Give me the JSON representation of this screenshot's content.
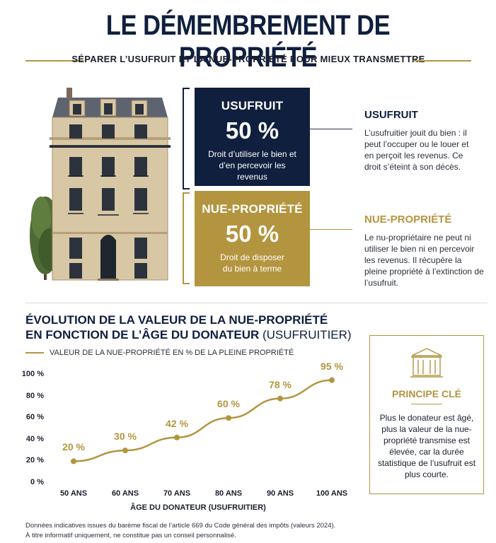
{
  "title": "LE DÉMEMBREMENT DE PROPRIÉTÉ",
  "subtitle": "SÉPARER L’USUFRUIT ET LA NUE-PROPRIÉTÉ POUR MIEUX TRANSMETTRE",
  "colors": {
    "navy": "#0f1f3d",
    "gold": "#b3953f"
  },
  "usufruit_box": {
    "heading": "USUFRUIT",
    "percent": "50 %",
    "description": "Droit d’utiliser le bien et d’en percevoir les revenus"
  },
  "nue_box": {
    "heading": "NUE-PROPRIÉTÉ",
    "percent": "50 %",
    "description": "Droit de disposer du bien à terme"
  },
  "usufruit_side": {
    "heading": "USUFRUIT",
    "text": "L’usufruitier jouit du bien : il peut l’occuper ou le louer et en perçoit les revenus. Ce droit s’éteint à son décès."
  },
  "nue_side": {
    "heading": "NUE-PROPRIÉTÉ",
    "text": "Le nu-propriétaire ne peut ni utiliser le bien ni en percevoir les revenus. Il récupère la pleine propriété à l’extinction de l’usufruit."
  },
  "chart_section": {
    "title_line1": "ÉVOLUTION DE LA VALEUR DE LA NUE-PROPRIÉTÉ",
    "title_line2_bold": "EN FONCTION DE L’ÂGE DU DONATEUR",
    "title_line2_light": "(USUFRUITIER)",
    "legend": "VALEUR DE LA NUE-PROPRIÉTÉ EN % DE LA PLEINE PROPRIÉTÉ"
  },
  "chart_data": {
    "type": "line",
    "categories": [
      "50 ANS",
      "60 ANS",
      "70 ANS",
      "80 ANS",
      "90 ANS",
      "100 ANS"
    ],
    "series": [
      {
        "name": "VALEUR DE LA NUE-PROPRIÉTÉ EN % DE LA PLEINE PROPRIÉTÉ",
        "values": [
          20,
          30,
          42,
          60,
          78,
          95
        ]
      }
    ],
    "data_labels": [
      "20 %",
      "30 %",
      "42 %",
      "60 %",
      "78 %",
      "95 %"
    ],
    "y_ticks": [
      "0 %",
      "20 %",
      "40 %",
      "60 %",
      "80 %",
      "100 %"
    ],
    "ylim": [
      0,
      100
    ],
    "xlabel": "ÂGE DU DONATEUR (USUFRUITIER)",
    "ylabel": "",
    "grid": false,
    "legend_position": "top-left"
  },
  "principe": {
    "heading": "PRINCIPE CLÉ",
    "icon": "building-icon",
    "text": "Plus le donateur est âgé, plus la valeur de la nue-propriété transmise est élevée, car la durée statistique de l’usufruit est plus courte."
  },
  "footnote": {
    "line1": "Données indicatives issues du barème fiscal de l’article 669 du Code général des impôts (valeurs 2024).",
    "line2": "À titre informatif uniquement, ne constitue pas un conseil personnalisé."
  }
}
